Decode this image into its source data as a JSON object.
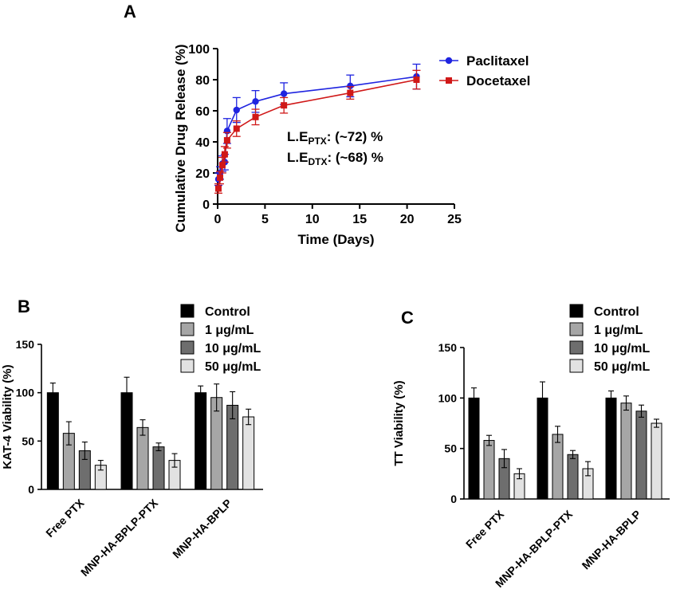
{
  "chart_data": [
    {
      "panel": "A",
      "type": "line",
      "xlabel": "Time (Days)",
      "ylabel": "Cumulative Drug  Release (%)",
      "xlim": [
        0,
        25
      ],
      "ylim": [
        0,
        100
      ],
      "xticks": [
        0,
        5,
        10,
        15,
        20,
        25
      ],
      "yticks": [
        0,
        20,
        40,
        60,
        80,
        100
      ],
      "legend_position": "top-right",
      "annotations": [
        {
          "prefix": "L.E",
          "sub": "PTX",
          "suffix": ": (~72) %"
        },
        {
          "prefix": "L.E",
          "sub": "DTX",
          "suffix": ": (~68) %"
        }
      ],
      "series": [
        {
          "name": "Paclitaxel",
          "color": "#1f24e0",
          "marker": "circle",
          "x": [
            0.083,
            0.25,
            0.5,
            0.75,
            1,
            2,
            4,
            7,
            14,
            21
          ],
          "y": [
            16,
            20,
            26,
            27,
            47,
            60.5,
            66,
            71,
            76,
            82
          ],
          "err": [
            4,
            4,
            5,
            5,
            8,
            8,
            7,
            7,
            7,
            8
          ]
        },
        {
          "name": "Docetaxel",
          "color": "#d01818",
          "marker": "square",
          "x": [
            0.083,
            0.25,
            0.5,
            0.75,
            1,
            2,
            4,
            7,
            14,
            21
          ],
          "y": [
            10,
            17,
            25,
            32,
            41,
            48.5,
            56,
            63.5,
            71.5,
            80
          ],
          "err": [
            3,
            4,
            5,
            5,
            5,
            5,
            5,
            5,
            4,
            6
          ]
        }
      ]
    },
    {
      "panel": "B",
      "type": "bar",
      "title": "",
      "ylabel": "KAT-4 Viability (%)",
      "ylim": [
        0,
        150
      ],
      "yticks": [
        0,
        50,
        100,
        150
      ],
      "categories": [
        "Free PTX",
        "MNP-HA-BPLP-PTX",
        "MNP-HA-BPLP"
      ],
      "legend_position": "top-right",
      "series": [
        {
          "name": "Control",
          "color": "#000000",
          "values": [
            100,
            100,
            100
          ],
          "err": [
            10,
            16,
            7
          ]
        },
        {
          "name": "1 μg/mL",
          "color": "#a6a6a6",
          "values": [
            58,
            64,
            95
          ],
          "err": [
            12,
            8,
            14
          ]
        },
        {
          "name": "10 μg/mL",
          "color": "#6e6e6e",
          "values": [
            40,
            44,
            87
          ],
          "err": [
            9,
            4,
            14
          ]
        },
        {
          "name": "50 μg/mL",
          "color": "#e2e2e2",
          "values": [
            25,
            30,
            75
          ],
          "err": [
            5,
            7,
            8
          ]
        }
      ]
    },
    {
      "panel": "C",
      "type": "bar",
      "title": "",
      "ylabel": "TT Viability (%)",
      "ylim": [
        0,
        150
      ],
      "yticks": [
        0,
        50,
        100,
        150
      ],
      "categories": [
        "Free PTX",
        "MNP-HA-BPLP-PTX",
        "MNP-HA-BPLP"
      ],
      "legend_position": "top-right",
      "series": [
        {
          "name": "Control",
          "color": "#000000",
          "values": [
            100,
            100,
            100
          ],
          "err": [
            10,
            16,
            7
          ]
        },
        {
          "name": "1 μg/mL",
          "color": "#a6a6a6",
          "values": [
            58,
            64,
            95
          ],
          "err": [
            5,
            8,
            7
          ]
        },
        {
          "name": "10 μg/mL",
          "color": "#6e6e6e",
          "values": [
            40,
            44,
            87
          ],
          "err": [
            9,
            4,
            6
          ]
        },
        {
          "name": "50 μg/mL",
          "color": "#e2e2e2",
          "values": [
            25,
            30,
            75
          ],
          "err": [
            5,
            7,
            4
          ]
        }
      ]
    }
  ]
}
